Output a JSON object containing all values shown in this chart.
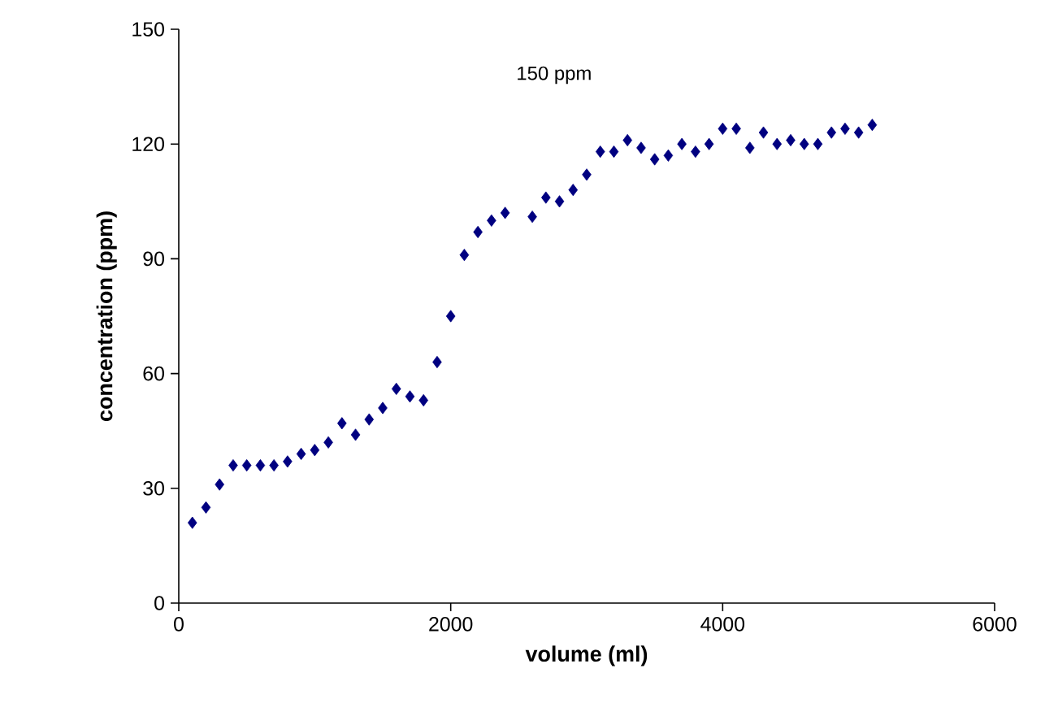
{
  "chart_data": {
    "type": "scatter",
    "xlabel": "volume (ml)",
    "ylabel": "concentration (ppm)",
    "annotations": [
      "150 ppm"
    ],
    "x": [
      100,
      200,
      300,
      400,
      500,
      600,
      700,
      800,
      900,
      1000,
      1100,
      1200,
      1300,
      1400,
      1500,
      1600,
      1700,
      1800,
      1900,
      2000,
      2100,
      2200,
      2300,
      2400,
      2600,
      2700,
      2800,
      2900,
      3000,
      3100,
      3200,
      3300,
      3400,
      3500,
      3600,
      3700,
      3800,
      3900,
      4000,
      4100,
      4200,
      4300,
      4400,
      4500,
      4600,
      4700,
      4800,
      4900,
      5000,
      5100
    ],
    "series": [
      {
        "color": "#000080",
        "values": [
          21,
          25,
          31,
          36,
          36,
          36,
          36,
          37,
          39,
          40,
          42,
          47,
          44,
          48,
          51,
          56,
          54,
          53,
          63,
          75,
          91,
          97,
          100,
          102,
          101,
          106,
          105,
          108,
          112,
          118,
          118,
          121,
          119,
          116,
          117,
          120,
          118,
          120,
          124,
          124,
          119,
          123,
          120,
          121,
          120,
          120,
          123,
          124,
          123,
          125
        ]
      }
    ],
    "xlim": [
      0,
      6000
    ],
    "ylim": [
      0,
      150
    ],
    "xticks": [
      0,
      2000,
      4000,
      6000
    ],
    "yticks": [
      0,
      30,
      60,
      90,
      120,
      150
    ],
    "marker": "diamond",
    "grid": false
  }
}
